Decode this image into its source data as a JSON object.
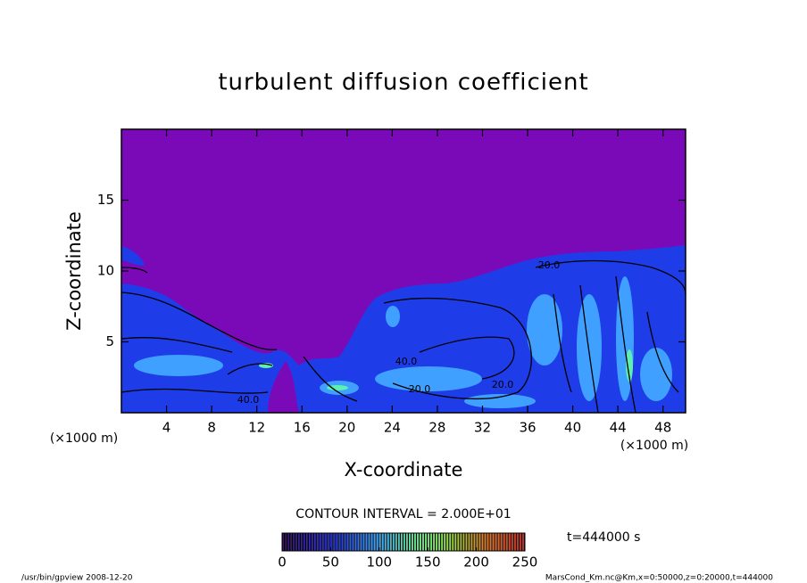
{
  "chart_data": [
    {
      "type": "contour",
      "title": "turbulent diffusion coefficient",
      "xlabel": "X-coordinate",
      "ylabel": "Z-coordinate",
      "x_unit": "(×1000 m)",
      "xlim": [
        0,
        50
      ],
      "xticks": [
        4,
        8,
        12,
        16,
        20,
        24,
        28,
        32,
        36,
        40,
        44,
        48
      ],
      "ylim": [
        0,
        20
      ],
      "yticks": [
        5,
        10,
        15
      ],
      "contour_interval": "CONTOUR INTERVAL = 2.000E+01",
      "contour_labels": [
        "20.0",
        "40.0",
        "20.0",
        "40.0",
        "20.0"
      ]
    },
    {
      "type": "colorbar",
      "clim": [
        0,
        250
      ],
      "ticks": [
        0,
        50,
        100,
        150,
        200,
        250
      ],
      "annotation": "t=444000 s"
    }
  ],
  "footer": {
    "left": "/usr/bin/gpview   2008-12-20",
    "right": "MarsCond_Km.nc@Km,x=0:50000,z=0:20000,t=444000"
  }
}
